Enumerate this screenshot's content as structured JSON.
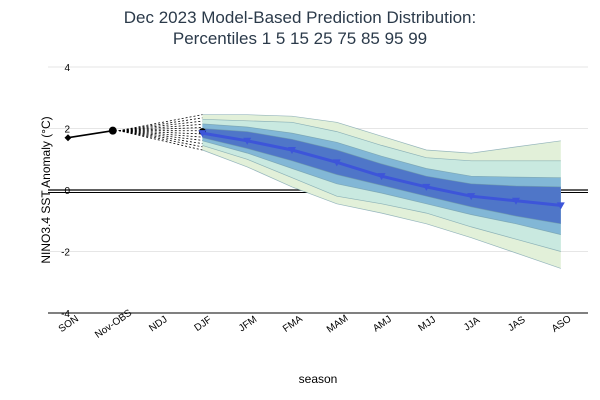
{
  "chart_data": {
    "type": "area",
    "title_lines": [
      "Dec 2023 Model-Based Prediction Distribution:",
      "Percentiles 1 5 15 25 75 85 95 99"
    ],
    "xlabel": "season",
    "ylabel": "NINO3.4 SST Anomaly (°C)",
    "ylim": [
      -4,
      4
    ],
    "yticks": [
      {
        "value": -4,
        "label": "-4"
      },
      {
        "value": -2,
        "label": "-2"
      },
      {
        "value": 0,
        "label": "0"
      },
      {
        "value": 2,
        "label": "2"
      },
      {
        "value": 4,
        "label": "4"
      }
    ],
    "categories": [
      "SON",
      "Nov-OBS",
      "NDJ",
      "DJF",
      "JFM",
      "FMA",
      "MAM",
      "AMJ",
      "MJJ",
      "JJA",
      "JAS",
      "ASO"
    ],
    "observed": {
      "x": [
        0,
        1
      ],
      "values": [
        1.7,
        1.93
      ]
    },
    "djf_observed": {
      "x": 3,
      "value": 1.9
    },
    "percentile_bands": [
      {
        "name": "1-99",
        "lower": [
          1.3,
          0.75,
          0.1,
          -0.45,
          -0.75,
          -1.1,
          -1.55,
          -2.05,
          -2.55
        ],
        "upper": [
          2.45,
          2.45,
          2.4,
          2.2,
          1.75,
          1.3,
          1.2,
          1.4,
          1.6
        ],
        "color": "#e2f0d9"
      },
      {
        "name": "5-95",
        "lower": [
          1.45,
          1.0,
          0.4,
          -0.2,
          -0.45,
          -0.75,
          -1.2,
          -1.6,
          -2.0
        ],
        "upper": [
          2.3,
          2.25,
          2.2,
          1.9,
          1.45,
          1.05,
          0.95,
          0.95,
          0.95
        ],
        "color": "#c9e9e0"
      },
      {
        "name": "15-85",
        "lower": [
          1.6,
          1.2,
          0.7,
          0.2,
          -0.1,
          -0.45,
          -0.8,
          -1.1,
          -1.45
        ],
        "upper": [
          2.15,
          2.05,
          1.85,
          1.55,
          1.1,
          0.7,
          0.45,
          0.42,
          0.4
        ],
        "color": "#82b7d6"
      },
      {
        "name": "25-75",
        "lower": [
          1.7,
          1.35,
          0.95,
          0.5,
          0.15,
          -0.2,
          -0.55,
          -0.85,
          -1.1
        ],
        "upper": [
          2.0,
          1.9,
          1.65,
          1.3,
          0.85,
          0.45,
          0.2,
          0.13,
          0.1
        ],
        "color": "#4f76c8"
      }
    ],
    "median": {
      "x": [
        3,
        4,
        5,
        6,
        7,
        8,
        9,
        10,
        11
      ],
      "values": [
        1.85,
        1.6,
        1.3,
        0.9,
        0.45,
        0.1,
        -0.2,
        -0.35,
        -0.5
      ],
      "color": "#3d55d9"
    },
    "grid": true
  }
}
